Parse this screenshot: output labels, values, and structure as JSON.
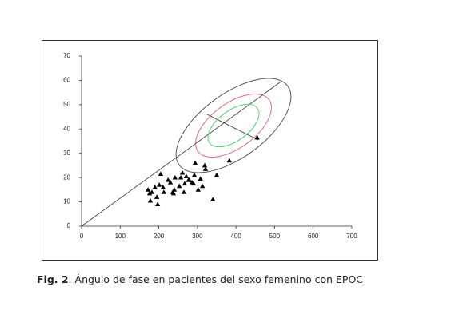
{
  "chart_data": {
    "type": "scatter",
    "color": "#000000",
    "x": [
      205,
      261,
      242,
      224,
      230,
      201,
      211,
      190,
      172,
      182,
      176,
      195,
      178,
      197,
      213,
      236,
      240,
      253,
      267,
      286,
      279,
      271,
      292,
      308,
      313,
      302,
      265,
      319,
      321,
      294,
      350,
      383,
      340,
      455,
      238,
      290,
      257,
      277
    ],
    "y": [
      21.5,
      22,
      20,
      19,
      18,
      17,
      16,
      16,
      15,
      14,
      13.5,
      12,
      10.5,
      9,
      14,
      14,
      15,
      16.5,
      17.5,
      18,
      19,
      20.5,
      21,
      19.5,
      16.5,
      15,
      14,
      25,
      23.5,
      26,
      21,
      27,
      11,
      36.5,
      13.5,
      17.5,
      20,
      19
    ],
    "xlim": [
      0,
      700
    ],
    "ylim": [
      0,
      70
    ],
    "xticks": [
      0,
      100,
      200,
      300,
      400,
      500,
      600,
      700
    ],
    "yticks": [
      0,
      10,
      20,
      30,
      40,
      50,
      60,
      70
    ]
  },
  "caption": {
    "label": "Fig. 2",
    "text": ". Ángulo de fase en pacientes del sexo femenino con EPOC"
  }
}
